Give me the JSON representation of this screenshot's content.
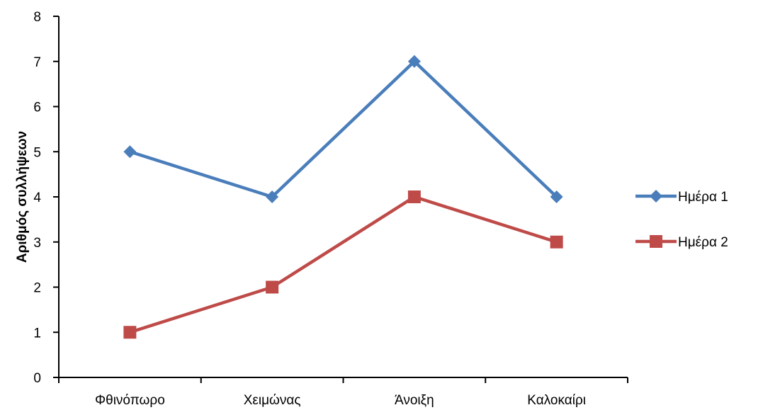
{
  "chart_data": {
    "type": "line",
    "title": "",
    "xlabel": "",
    "ylabel": "Αριθμός συλλήψεων",
    "categories": [
      "Φθινόπωρο",
      "Χειμώνας",
      "Άνοιξη",
      "Καλοκαίρι"
    ],
    "ylim": [
      0,
      8
    ],
    "yticks": [
      "0",
      "1",
      "2",
      "3",
      "4",
      "5",
      "6",
      "7",
      "8"
    ],
    "grid": false,
    "legend_position": "right",
    "series": [
      {
        "name": "Ημέρα 1",
        "values": [
          5,
          4,
          7,
          4
        ],
        "color": "#4A7EBB",
        "marker": "diamond"
      },
      {
        "name": "Ημέρα 2",
        "values": [
          1,
          2,
          4,
          3
        ],
        "color": "#BE4B48",
        "marker": "square"
      }
    ]
  }
}
